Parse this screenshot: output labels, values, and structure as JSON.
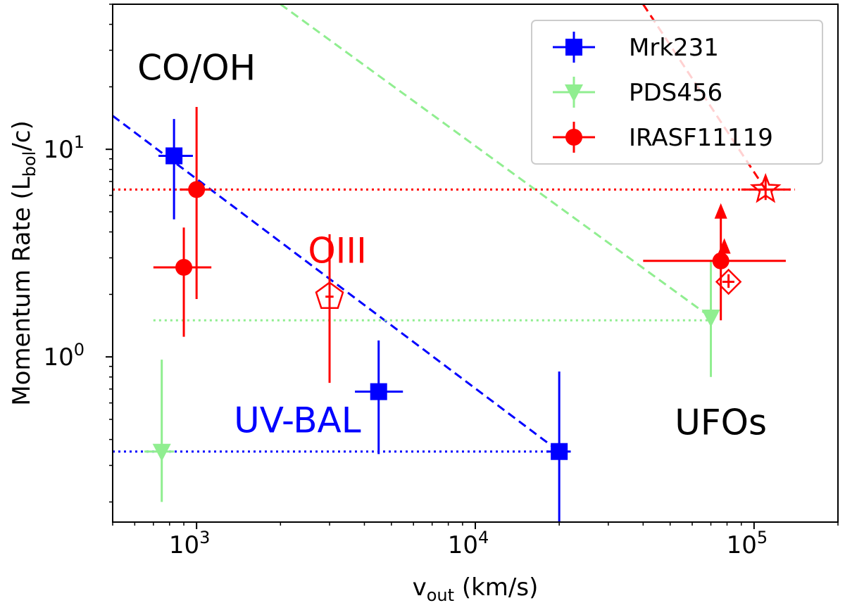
{
  "chart_data": {
    "type": "scatter",
    "xscale": "log",
    "yscale": "log",
    "xlim": [
      500,
      200000
    ],
    "ylim": [
      0.16,
      50
    ],
    "xlabel": "v",
    "xlabel_sub": "out",
    "xlabel_tail": " (km/s)",
    "ylabel": "Momentum Rate (L",
    "ylabel_sub": "bol",
    "ylabel_tail": "/c)",
    "xticks": [
      {
        "value": 1000,
        "base": "10",
        "exp": "3"
      },
      {
        "value": 10000,
        "base": "10",
        "exp": "4"
      },
      {
        "value": 100000,
        "base": "10",
        "exp": "5"
      }
    ],
    "yticks": [
      {
        "value": 1,
        "base": "10",
        "exp": "0"
      },
      {
        "value": 10,
        "base": "10",
        "exp": "1"
      }
    ],
    "legend": {
      "position": "top-right",
      "entries": [
        {
          "label": "Mrk231",
          "color": "#0000ff",
          "marker": "square"
        },
        {
          "label": "PDS456",
          "color": "#90ee90",
          "marker": "triangle-down"
        },
        {
          "label": "IRASF11119",
          "color": "#ff0000",
          "marker": "circle"
        }
      ]
    },
    "annotations": [
      {
        "text": "CO/OH",
        "color": "#000000",
        "x": 1000,
        "y": 24
      },
      {
        "text": "OIII",
        "color": "#ff0000",
        "x": 3200,
        "y": 3.15
      },
      {
        "text": "UV-BAL",
        "color": "#0000ff",
        "x": 2300,
        "y": 0.48
      },
      {
        "text": "UFOs",
        "color": "#000000",
        "x": 76000,
        "y": 0.47
      }
    ],
    "series": [
      {
        "name": "Mrk231",
        "color": "#0000ff",
        "marker": "square",
        "hollow": false,
        "points": [
          {
            "x": 830,
            "y": 9.3,
            "xerr": [
              730,
              970
            ],
            "yerr": [
              4.6,
              14
            ]
          },
          {
            "x": 4500,
            "y": 0.68,
            "xerr": [
              3700,
              5500
            ],
            "yerr": [
              0.34,
              1.2
            ]
          },
          {
            "x": 20000,
            "y": 0.35,
            "xerr": [
              18000,
              22000
            ],
            "yerr": [
              0.16,
              0.85
            ]
          }
        ]
      },
      {
        "name": "PDS456",
        "color": "#90ee90",
        "marker": "triangle-down",
        "hollow": false,
        "points": [
          {
            "x": 750,
            "y": 0.35,
            "xerr": [
              650,
              830
            ],
            "yerr": [
              0.2,
              0.97
            ]
          },
          {
            "x": 70000,
            "y": 1.55,
            "xerr": null,
            "yerr": [
              0.8,
              2.9
            ]
          }
        ]
      },
      {
        "name": "IRASF11119",
        "color": "#ff0000",
        "marker": "circle",
        "hollow": false,
        "points": [
          {
            "x": 1000,
            "y": 6.4,
            "xerr": [
              870,
              1130
            ],
            "yerr": [
              1.9,
              16
            ]
          },
          {
            "x": 900,
            "y": 2.7,
            "xerr": [
              700,
              1130
            ],
            "yerr": [
              1.25,
              4.2
            ]
          },
          {
            "x": 76000,
            "y": 2.9,
            "xerr": [
              40000,
              130000
            ],
            "yerr": [
              1.5,
              2.9
            ],
            "upper_arrow": true
          }
        ]
      },
      {
        "name": "",
        "color": "#ff0000",
        "marker": "pentagon",
        "hollow": true,
        "points": [
          {
            "x": 3000,
            "y": 1.95,
            "xerr": [
              2900,
              3100
            ],
            "yerr": [
              0.75,
              3.9
            ]
          }
        ]
      },
      {
        "name": "",
        "color": "#ff0000",
        "marker": "diamond",
        "hollow": true,
        "points": [
          {
            "x": 81000,
            "y": 2.3,
            "xerr": [
              77000,
              85000
            ],
            "yerr": [
              2.15,
              2.5
            ],
            "upper_arrow_small": true
          }
        ]
      },
      {
        "name": "",
        "color": "#ff0000",
        "marker": "star",
        "hollow": true,
        "points": [
          {
            "x": 110000,
            "y": 6.4,
            "xerr": [
              90000,
              135000
            ],
            "yerr": [
              5.7,
              7.3
            ]
          }
        ]
      }
    ],
    "reference_lines": [
      {
        "style": "dashed",
        "color": "#0000ff",
        "from": [
          500,
          14.5
        ],
        "to": [
          20000,
          0.35
        ]
      },
      {
        "style": "dashed",
        "color": "#90ee90",
        "from": [
          2000,
          50
        ],
        "to": [
          70000,
          1.55
        ]
      },
      {
        "style": "dashed",
        "color": "#ff0000",
        "from": [
          40000,
          50
        ],
        "to": [
          110000,
          6.4
        ]
      },
      {
        "style": "dotted",
        "color": "#ff0000",
        "from": [
          500,
          6.4
        ],
        "to": [
          140000,
          6.4
        ]
      },
      {
        "style": "dotted",
        "color": "#90ee90",
        "from": [
          700,
          1.5
        ],
        "to": [
          70000,
          1.5
        ]
      },
      {
        "style": "dotted",
        "color": "#0000ff",
        "from": [
          500,
          0.35
        ],
        "to": [
          20000,
          0.35
        ]
      }
    ]
  }
}
